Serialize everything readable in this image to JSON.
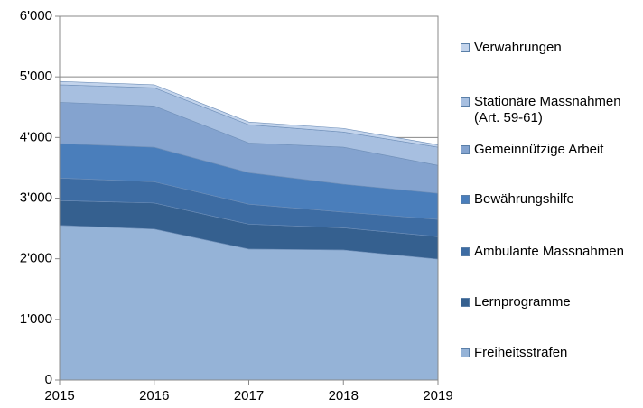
{
  "chart_data": {
    "type": "stacked_area",
    "x": [
      2015,
      2016,
      2017,
      2018,
      2019
    ],
    "xlim": [
      2015,
      2019
    ],
    "xticks": [
      2015,
      2016,
      2017,
      2018,
      2019
    ],
    "ylim": [
      0,
      6000
    ],
    "yticks": [
      0,
      {
        "value": 1000,
        "label": "1'000"
      },
      {
        "value": 2000,
        "label": "2'000"
      },
      {
        "value": 3000,
        "label": "3'000"
      },
      {
        "value": 4000,
        "label": "4'000"
      },
      {
        "value": 5000,
        "label": "5'000"
      },
      {
        "value": 6000,
        "label": "6'000"
      }
    ],
    "grid": true,
    "legend": "right",
    "series": [
      {
        "name": "Freiheitsstrafen",
        "color": "#95b3d7",
        "values": [
          2550,
          2490,
          2160,
          2145,
          1995
        ]
      },
      {
        "name": "Lernprogramme",
        "color": "#35608f",
        "values": [
          410,
          430,
          410,
          365,
          370
        ]
      },
      {
        "name": "Ambulante Massnahmen",
        "color": "#3d6ca3",
        "values": [
          370,
          350,
          330,
          260,
          285
        ]
      },
      {
        "name": "Bewährungshilfe",
        "color": "#4a7ebb",
        "values": [
          570,
          570,
          520,
          460,
          430
        ]
      },
      {
        "name": "Gemeinnützige Arbeit",
        "color": "#84a3cf",
        "values": [
          680,
          680,
          490,
          610,
          460
        ]
      },
      {
        "name": "Stationäre Massnahmen (Art. 59-61)",
        "color": "#a7bfe0",
        "values": [
          290,
          300,
          300,
          250,
          300
        ]
      },
      {
        "name": "Verwahrungen",
        "color": "#c3d4ec",
        "values": [
          55,
          50,
          45,
          60,
          40
        ]
      }
    ]
  }
}
